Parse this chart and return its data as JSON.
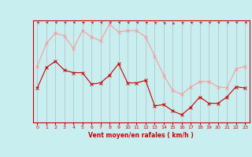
{
  "hours": [
    0,
    1,
    2,
    3,
    4,
    5,
    6,
    7,
    8,
    9,
    10,
    11,
    12,
    13,
    14,
    15,
    16,
    17,
    18,
    19,
    20,
    21,
    22,
    23
  ],
  "wind_mean": [
    40,
    56,
    61,
    54,
    52,
    52,
    43,
    44,
    50,
    59,
    44,
    44,
    46,
    26,
    27,
    22,
    19,
    25,
    33,
    28,
    28,
    33,
    41,
    40
  ],
  "wind_gust": [
    57,
    75,
    83,
    81,
    71,
    85,
    80,
    77,
    90,
    84,
    85,
    85,
    80,
    65,
    50,
    38,
    35,
    41,
    45,
    45,
    41,
    40,
    55,
    57
  ],
  "bg_color": "#c8eef0",
  "grid_color": "#b0b0b0",
  "mean_color": "#cc0000",
  "gust_color": "#ff9999",
  "xlabel": "Vent moyen/en rafales ( km/h )",
  "xlabel_color": "#cc0000",
  "yticks": [
    15,
    20,
    25,
    30,
    35,
    40,
    45,
    50,
    55,
    60,
    65,
    70,
    75,
    80,
    85,
    90
  ],
  "ymin": 13,
  "ymax": 93,
  "tick_label_color": "#cc0000",
  "axis_color": "#cc0000",
  "arrow_angles": [
    210,
    220,
    215,
    210,
    215,
    200,
    205,
    210,
    215,
    220,
    215,
    210,
    200,
    195,
    190,
    185,
    195,
    200,
    205,
    210,
    215,
    210,
    215,
    210
  ]
}
